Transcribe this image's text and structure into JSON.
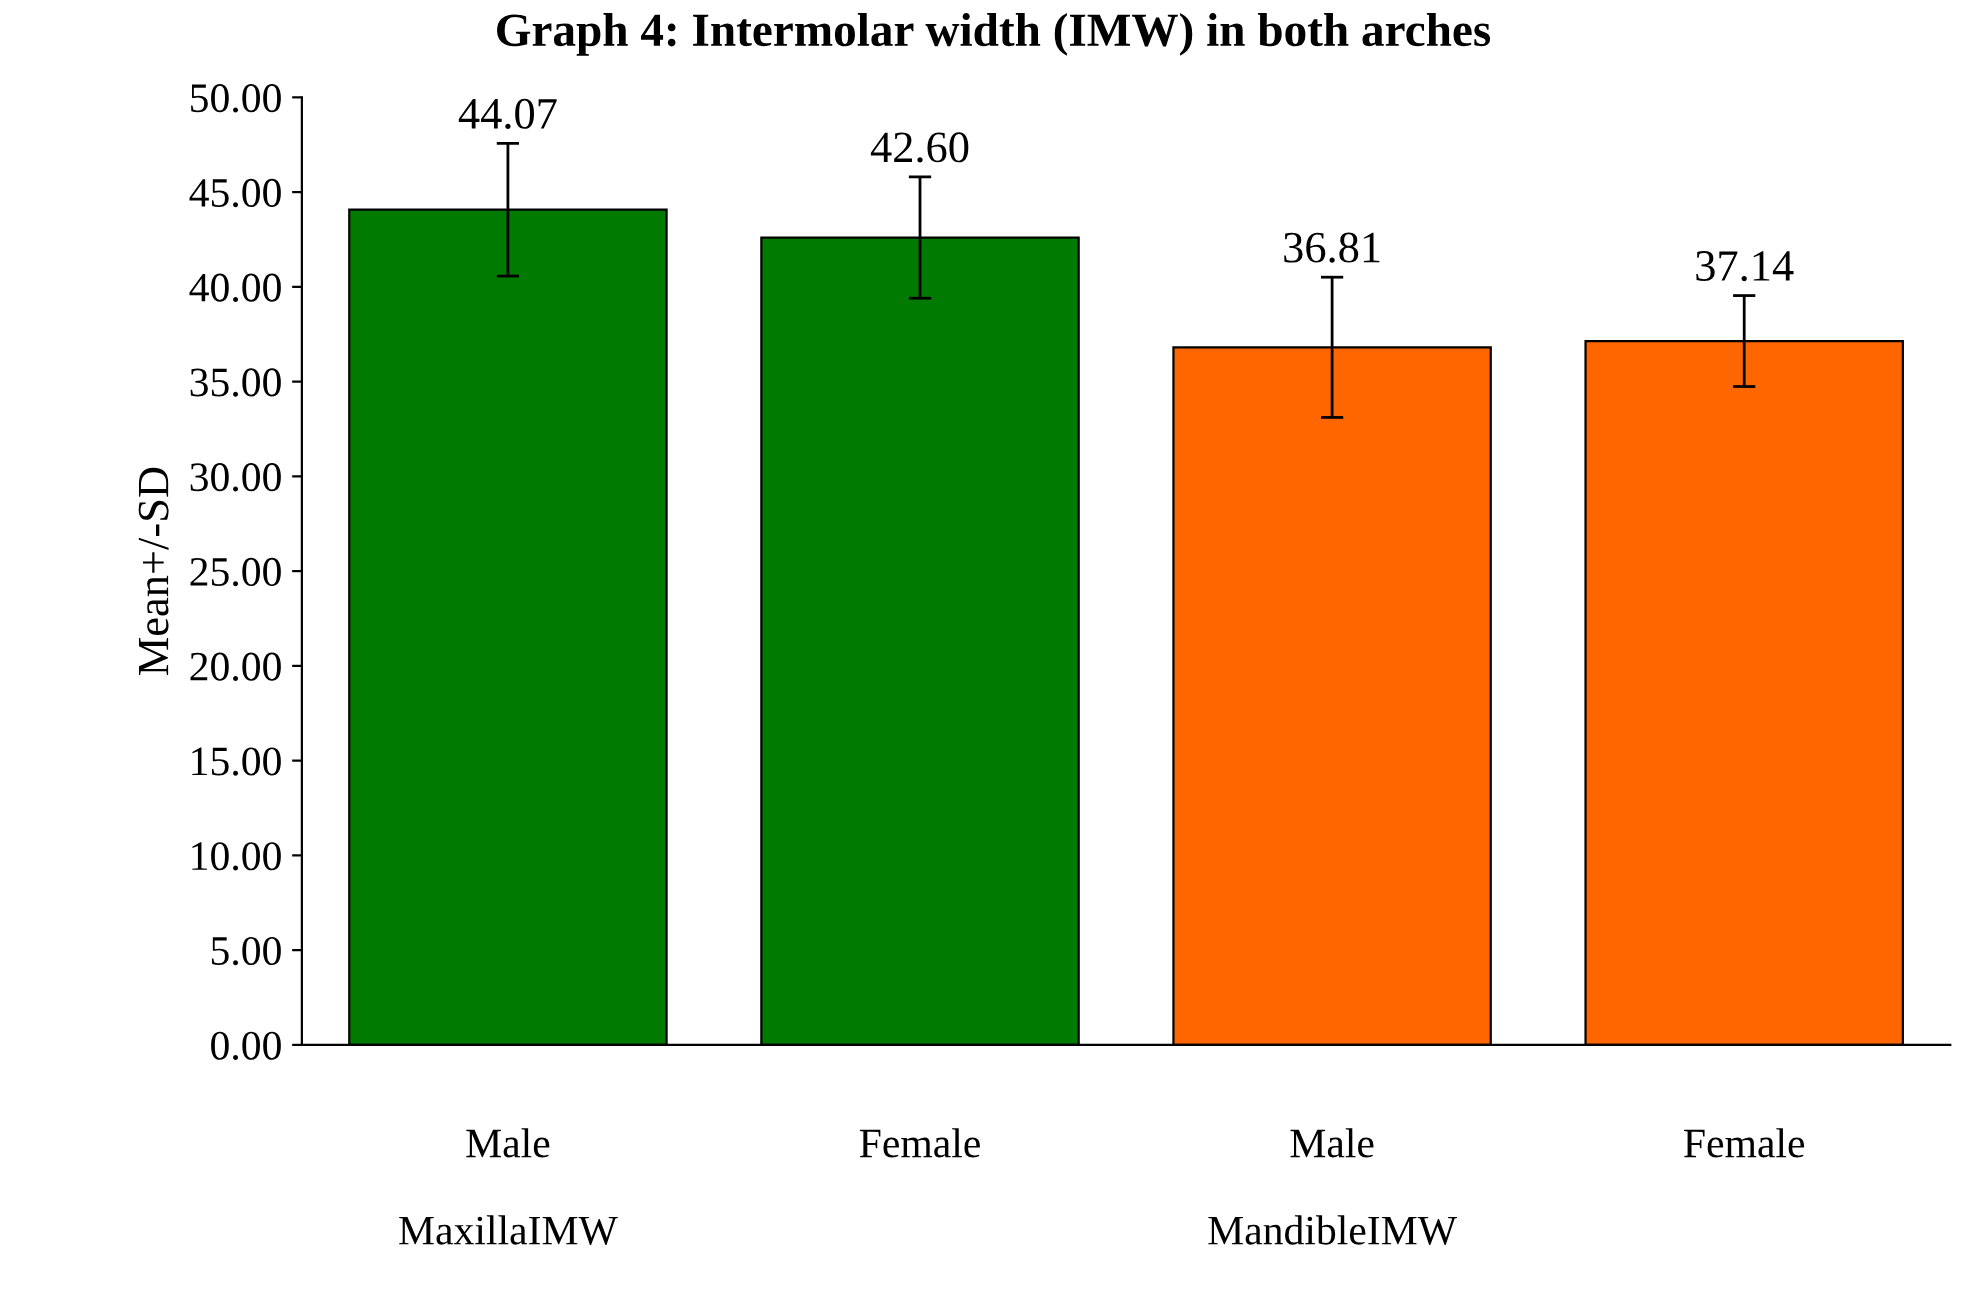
{
  "chart_data": {
    "type": "bar",
    "title": "Graph 4: Intermolar width (IMW) in both arches",
    "ylabel": "Mean+/-SD",
    "categories": [
      "Male\n\nMaxillaIMW",
      "Female",
      "Male\n\nMandibleIMW",
      "Female"
    ],
    "values": [
      44.07,
      42.6,
      36.81,
      37.14
    ],
    "colors": [
      "#007a00",
      "#007a00",
      "#ff6600",
      "#ff6600"
    ],
    "errors": [
      3.5,
      3.2,
      3.7,
      2.4
    ],
    "value_labels": [
      "44.07",
      "42.60",
      "36.81",
      "37.14"
    ],
    "ylim": [
      0,
      50
    ],
    "yticks": [
      {
        "value": 0,
        "label": "0.00"
      },
      {
        "value": 5,
        "label": "5.00"
      },
      {
        "value": 10,
        "label": "10.00"
      },
      {
        "value": 15,
        "label": "15.00"
      },
      {
        "value": 20,
        "label": "20.00"
      },
      {
        "value": 25,
        "label": "25.00"
      },
      {
        "value": 30,
        "label": "30.00"
      },
      {
        "value": 35,
        "label": "35.00"
      },
      {
        "value": 40,
        "label": "40.00"
      },
      {
        "value": 45,
        "label": "45.00"
      },
      {
        "value": 50,
        "label": "50.00"
      }
    ],
    "grid": false,
    "legend": false
  }
}
